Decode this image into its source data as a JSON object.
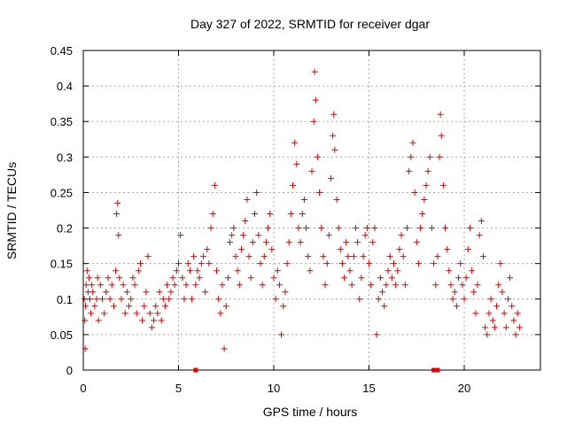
{
  "chart_data": {
    "type": "scatter",
    "title": "Day 327 of 2022, SRMTID for receiver dgar",
    "xlabel": "GPS time / hours",
    "ylabel": "SRMTID / TECUs",
    "xlim": [
      0,
      24
    ],
    "ylim": [
      0,
      0.45
    ],
    "xticks": [
      0,
      5,
      10,
      15,
      20
    ],
    "yticks": [
      0,
      0.05,
      0.1,
      0.15,
      0.2,
      0.25,
      0.3,
      0.35,
      0.4,
      0.45
    ],
    "xtick_labels": [
      "0",
      "5",
      "10",
      "15",
      "20"
    ],
    "ytick_labels": [
      "0",
      "0.05",
      "0.1",
      "0.15",
      "0.2",
      "0.25",
      "0.3",
      "0.35",
      "0.4",
      "0.45"
    ],
    "grid": true,
    "marker": "+",
    "color": "#e00000",
    "series": [
      {
        "name": "SRMTID",
        "points": [
          [
            0.05,
            0.1
          ],
          [
            0.08,
            0.07
          ],
          [
            0.1,
            0.03
          ],
          [
            0.12,
            0.09
          ],
          [
            0.15,
            0.12
          ],
          [
            0.2,
            0.14
          ],
          [
            0.25,
            0.11
          ],
          [
            0.3,
            0.13
          ],
          [
            0.35,
            0.1
          ],
          [
            0.4,
            0.08
          ],
          [
            0.45,
            0.12
          ],
          [
            0.5,
            0.11
          ],
          [
            0.6,
            0.09
          ],
          [
            0.7,
            0.1
          ],
          [
            0.75,
            0.13
          ],
          [
            0.8,
            0.07
          ],
          [
            0.9,
            0.12
          ],
          [
            1.0,
            0.1
          ],
          [
            1.1,
            0.08
          ],
          [
            1.2,
            0.11
          ],
          [
            1.3,
            0.13
          ],
          [
            1.4,
            0.1
          ],
          [
            1.5,
            0.12
          ],
          [
            1.6,
            0.09
          ],
          [
            1.7,
            0.14
          ],
          [
            1.75,
            0.22
          ],
          [
            1.8,
            0.235
          ],
          [
            1.85,
            0.19
          ],
          [
            1.9,
            0.13
          ],
          [
            2.0,
            0.1
          ],
          [
            2.1,
            0.12
          ],
          [
            2.2,
            0.08
          ],
          [
            2.3,
            0.11
          ],
          [
            2.4,
            0.09
          ],
          [
            2.5,
            0.1
          ],
          [
            2.6,
            0.13
          ],
          [
            2.7,
            0.12
          ],
          [
            2.8,
            0.08
          ],
          [
            2.9,
            0.14
          ],
          [
            3.0,
            0.15
          ],
          [
            3.1,
            0.07
          ],
          [
            3.2,
            0.09
          ],
          [
            3.3,
            0.11
          ],
          [
            3.4,
            0.16
          ],
          [
            3.5,
            0.08
          ],
          [
            3.6,
            0.06
          ],
          [
            3.7,
            0.07
          ],
          [
            3.8,
            0.09
          ],
          [
            3.9,
            0.08
          ],
          [
            4.0,
            0.11
          ],
          [
            4.1,
            0.07
          ],
          [
            4.2,
            0.1
          ],
          [
            4.3,
            0.09
          ],
          [
            4.4,
            0.12
          ],
          [
            4.5,
            0.1
          ],
          [
            4.6,
            0.11
          ],
          [
            4.7,
            0.13
          ],
          [
            4.8,
            0.12
          ],
          [
            4.9,
            0.14
          ],
          [
            5.0,
            0.15
          ],
          [
            5.1,
            0.19
          ],
          [
            5.2,
            0.13
          ],
          [
            5.3,
            0.1
          ],
          [
            5.4,
            0.12
          ],
          [
            5.5,
            0.15
          ],
          [
            5.6,
            0.14
          ],
          [
            5.7,
            0.1
          ],
          [
            5.8,
            0.16
          ],
          [
            5.9,
            0.12
          ],
          [
            6.0,
            0.14
          ],
          [
            6.1,
            0.13
          ],
          [
            6.2,
            0.15
          ],
          [
            6.3,
            0.16
          ],
          [
            6.4,
            0.11
          ],
          [
            6.5,
            0.17
          ],
          [
            6.6,
            0.15
          ],
          [
            6.7,
            0.2
          ],
          [
            6.8,
            0.22
          ],
          [
            6.9,
            0.26
          ],
          [
            7.0,
            0.14
          ],
          [
            7.1,
            0.1
          ],
          [
            7.2,
            0.08
          ],
          [
            7.3,
            0.12
          ],
          [
            7.4,
            0.03
          ],
          [
            7.5,
            0.09
          ],
          [
            7.6,
            0.13
          ],
          [
            7.7,
            0.18
          ],
          [
            7.8,
            0.19
          ],
          [
            7.9,
            0.2
          ],
          [
            8.0,
            0.16
          ],
          [
            8.1,
            0.14
          ],
          [
            8.2,
            0.12
          ],
          [
            8.3,
            0.17
          ],
          [
            8.4,
            0.19
          ],
          [
            8.5,
            0.21
          ],
          [
            8.6,
            0.24
          ],
          [
            8.7,
            0.16
          ],
          [
            8.8,
            0.13
          ],
          [
            8.9,
            0.18
          ],
          [
            9.0,
            0.22
          ],
          [
            9.1,
            0.25
          ],
          [
            9.2,
            0.19
          ],
          [
            9.3,
            0.15
          ],
          [
            9.4,
            0.12
          ],
          [
            9.5,
            0.16
          ],
          [
            9.6,
            0.18
          ],
          [
            9.7,
            0.2
          ],
          [
            9.8,
            0.22
          ],
          [
            9.9,
            0.17
          ],
          [
            10.0,
            0.13
          ],
          [
            10.1,
            0.1
          ],
          [
            10.2,
            0.14
          ],
          [
            10.3,
            0.12
          ],
          [
            10.4,
            0.05
          ],
          [
            10.5,
            0.09
          ],
          [
            10.6,
            0.11
          ],
          [
            10.7,
            0.15
          ],
          [
            10.8,
            0.18
          ],
          [
            10.9,
            0.22
          ],
          [
            11.0,
            0.26
          ],
          [
            11.1,
            0.32
          ],
          [
            11.2,
            0.29
          ],
          [
            11.3,
            0.2
          ],
          [
            11.4,
            0.18
          ],
          [
            11.5,
            0.22
          ],
          [
            11.6,
            0.24
          ],
          [
            11.7,
            0.2
          ],
          [
            11.8,
            0.16
          ],
          [
            11.9,
            0.14
          ],
          [
            12.0,
            0.28
          ],
          [
            12.1,
            0.35
          ],
          [
            12.15,
            0.42
          ],
          [
            12.2,
            0.38
          ],
          [
            12.3,
            0.3
          ],
          [
            12.4,
            0.25
          ],
          [
            12.5,
            0.2
          ],
          [
            12.6,
            0.16
          ],
          [
            12.7,
            0.12
          ],
          [
            12.8,
            0.15
          ],
          [
            12.9,
            0.19
          ],
          [
            13.0,
            0.27
          ],
          [
            13.1,
            0.33
          ],
          [
            13.15,
            0.36
          ],
          [
            13.2,
            0.31
          ],
          [
            13.3,
            0.24
          ],
          [
            13.4,
            0.2
          ],
          [
            13.5,
            0.17
          ],
          [
            13.6,
            0.15
          ],
          [
            13.7,
            0.13
          ],
          [
            13.8,
            0.18
          ],
          [
            13.9,
            0.16
          ],
          [
            14.0,
            0.14
          ],
          [
            14.1,
            0.12
          ],
          [
            14.2,
            0.16
          ],
          [
            14.3,
            0.2
          ],
          [
            14.4,
            0.18
          ],
          [
            14.5,
            0.1
          ],
          [
            14.6,
            0.13
          ],
          [
            14.7,
            0.16
          ],
          [
            14.8,
            0.19
          ],
          [
            14.9,
            0.2
          ],
          [
            15.0,
            0.15
          ],
          [
            15.1,
            0.12
          ],
          [
            15.2,
            0.18
          ],
          [
            15.3,
            0.2
          ],
          [
            15.4,
            0.05
          ],
          [
            15.5,
            0.1
          ],
          [
            15.6,
            0.13
          ],
          [
            15.7,
            0.11
          ],
          [
            15.8,
            0.09
          ],
          [
            15.9,
            0.12
          ],
          [
            16.0,
            0.14
          ],
          [
            16.1,
            0.16
          ],
          [
            16.2,
            0.13
          ],
          [
            16.3,
            0.15
          ],
          [
            16.4,
            0.12
          ],
          [
            16.5,
            0.14
          ],
          [
            16.6,
            0.17
          ],
          [
            16.7,
            0.19
          ],
          [
            16.8,
            0.16
          ],
          [
            16.9,
            0.12
          ],
          [
            17.0,
            0.2
          ],
          [
            17.1,
            0.28
          ],
          [
            17.2,
            0.3
          ],
          [
            17.3,
            0.32
          ],
          [
            17.4,
            0.25
          ],
          [
            17.5,
            0.18
          ],
          [
            17.6,
            0.15
          ],
          [
            17.7,
            0.2
          ],
          [
            17.8,
            0.22
          ],
          [
            17.9,
            0.24
          ],
          [
            18.0,
            0.26
          ],
          [
            18.1,
            0.28
          ],
          [
            18.2,
            0.3
          ],
          [
            18.3,
            0.2
          ],
          [
            18.4,
            0.15
          ],
          [
            18.5,
            0.12
          ],
          [
            18.6,
            0.16
          ],
          [
            18.7,
            0.3
          ],
          [
            18.75,
            0.36
          ],
          [
            18.8,
            0.33
          ],
          [
            18.9,
            0.26
          ],
          [
            19.0,
            0.2
          ],
          [
            19.1,
            0.17
          ],
          [
            19.2,
            0.14
          ],
          [
            19.3,
            0.12
          ],
          [
            19.4,
            0.1
          ],
          [
            19.5,
            0.11
          ],
          [
            19.6,
            0.09
          ],
          [
            19.7,
            0.13
          ],
          [
            19.8,
            0.15
          ],
          [
            19.9,
            0.12
          ],
          [
            20.0,
            0.1
          ],
          [
            20.1,
            0.13
          ],
          [
            20.2,
            0.17
          ],
          [
            20.3,
            0.2
          ],
          [
            20.4,
            0.14
          ],
          [
            20.5,
            0.11
          ],
          [
            20.6,
            0.08
          ],
          [
            20.7,
            0.12
          ],
          [
            20.8,
            0.19
          ],
          [
            20.9,
            0.21
          ],
          [
            21.0,
            0.16
          ],
          [
            21.1,
            0.06
          ],
          [
            21.2,
            0.05
          ],
          [
            21.3,
            0.08
          ],
          [
            21.4,
            0.1
          ],
          [
            21.5,
            0.07
          ],
          [
            21.6,
            0.06
          ],
          [
            21.7,
            0.09
          ],
          [
            21.8,
            0.12
          ],
          [
            21.9,
            0.15
          ],
          [
            22.0,
            0.11
          ],
          [
            22.1,
            0.08
          ],
          [
            22.2,
            0.06
          ],
          [
            22.3,
            0.1
          ],
          [
            22.4,
            0.13
          ],
          [
            22.5,
            0.09
          ],
          [
            22.6,
            0.07
          ],
          [
            22.7,
            0.05
          ],
          [
            22.8,
            0.08
          ],
          [
            22.9,
            0.06
          ]
        ]
      }
    ],
    "zero_markers": [
      5.9,
      18.4,
      18.6
    ]
  }
}
